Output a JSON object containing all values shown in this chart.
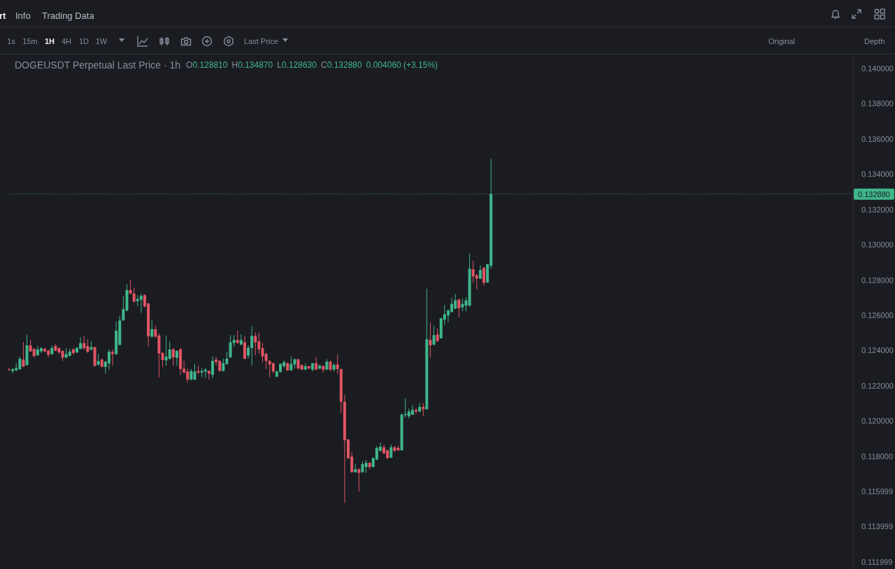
{
  "chart_data": {
    "type": "candlestick",
    "title": "DOGEUSDT Perpetual Last Price · 1h",
    "annotations": [
      "rt",
      "Info",
      "Trading Data",
      "1s",
      "15m",
      "1H",
      "4H",
      "1D",
      "1W",
      "Last Price",
      "Original",
      "Depth",
      "O0.128810",
      "H0.134870",
      "L0.128630",
      "C0.132880",
      "0.004060 (+3.15%)"
    ],
    "categories": [
      null,
      null,
      null,
      null,
      null,
      null,
      null,
      null,
      null,
      null,
      null,
      null,
      null,
      null,
      null,
      null,
      null,
      null,
      null,
      null,
      null,
      null,
      null,
      null,
      null,
      null,
      null,
      null,
      null,
      null,
      null,
      null,
      null,
      null,
      null,
      null,
      null,
      null,
      null,
      null,
      null,
      null,
      null,
      null,
      null,
      null,
      null,
      null,
      null,
      null,
      null,
      null,
      null,
      null,
      null,
      null,
      null,
      null,
      null,
      null,
      null,
      null,
      null,
      null,
      null,
      null,
      null,
      null,
      null,
      null,
      null,
      null,
      null,
      null,
      null,
      null,
      null,
      null,
      null,
      null,
      null,
      null,
      null,
      null,
      null,
      null,
      null,
      null,
      null,
      null,
      null,
      null,
      null,
      null,
      null,
      null,
      null,
      null,
      null,
      null,
      null,
      null,
      null,
      null,
      null,
      null,
      null,
      null,
      null,
      null,
      null,
      null,
      null,
      null,
      null,
      null,
      null,
      null,
      null,
      null,
      null,
      null,
      null,
      null,
      null,
      null,
      null,
      null,
      null,
      null,
      null,
      null,
      null,
      null,
      null,
      null,
      null,
      null,
      null,
      null,
      null,
      null,
      null,
      null,
      null,
      null,
      null,
      null,
      null,
      null,
      null,
      null,
      null,
      null,
      null,
      null,
      null,
      null,
      null,
      null,
      null,
      null,
      null,
      null,
      null,
      null,
      null,
      null,
      null,
      null,
      null,
      null,
      null,
      null,
      null,
      null,
      null,
      null,
      null,
      null,
      null,
      null,
      null,
      null,
      null,
      null,
      null,
      null,
      null,
      null,
      null,
      null,
      null,
      null,
      null,
      null,
      null,
      null,
      null,
      null,
      null,
      null,
      null,
      null,
      null,
      null,
      null,
      null,
      null,
      null,
      null,
      null,
      null,
      null,
      null,
      null,
      null,
      null,
      null,
      null,
      null,
      null,
      null,
      null,
      null,
      null,
      null,
      null,
      null,
      null,
      null,
      null,
      null,
      null,
      null,
      null,
      null
    ],
    "ohlc": [
      [
        0.12294,
        0.123,
        0.12284,
        0.1229
      ],
      [
        0.12283,
        0.123,
        0.1227,
        0.12294
      ],
      [
        0.12287,
        0.12327,
        0.12284,
        0.123
      ],
      [
        0.12294,
        0.12366,
        0.12291,
        0.12353
      ],
      [
        0.12349,
        0.12448,
        0.12307,
        0.12309
      ],
      [
        0.12317,
        0.12489,
        0.12314,
        0.12429
      ],
      [
        0.12429,
        0.12459,
        0.12393,
        0.12395
      ],
      [
        0.12409,
        0.12413,
        0.1236,
        0.12369
      ],
      [
        0.12373,
        0.12426,
        0.1237,
        0.12406
      ],
      [
        0.12395,
        0.12419,
        0.12386,
        0.12413
      ],
      [
        0.1241,
        0.12415,
        0.12389,
        0.12395
      ],
      [
        0.12399,
        0.12406,
        0.12362,
        0.12376
      ],
      [
        0.1238,
        0.12429,
        0.12376,
        0.12415
      ],
      [
        0.12426,
        0.12436,
        0.12397,
        0.12399
      ],
      [
        0.12413,
        0.12419,
        0.1238,
        0.12389
      ],
      [
        0.12397,
        0.12402,
        0.1234,
        0.1236
      ],
      [
        0.1236,
        0.12415,
        0.12357,
        0.1238
      ],
      [
        0.1237,
        0.1241,
        0.12366,
        0.12393
      ],
      [
        0.12406,
        0.12415,
        0.12376,
        0.12386
      ],
      [
        0.12389,
        0.12419,
        0.12386,
        0.12415
      ],
      [
        0.1241,
        0.12476,
        0.12407,
        0.12442
      ],
      [
        0.12442,
        0.12483,
        0.12406,
        0.12413
      ],
      [
        0.12426,
        0.12462,
        0.12386,
        0.12393
      ],
      [
        0.12406,
        0.12452,
        0.12399,
        0.12419
      ],
      [
        0.12419,
        0.12423,
        0.12307,
        0.12313
      ],
      [
        0.1232,
        0.1238,
        0.12313,
        0.1234
      ],
      [
        0.12349,
        0.12353,
        0.12304,
        0.12307
      ],
      [
        0.12307,
        0.1234,
        0.1227,
        0.12337
      ],
      [
        0.12327,
        0.12406,
        0.12291,
        0.12393
      ],
      [
        0.12393,
        0.12406,
        0.12313,
        0.1238
      ],
      [
        0.1238,
        0.12565,
        0.12373,
        0.12512
      ],
      [
        0.12432,
        0.12598,
        0.12429,
        0.12571
      ],
      [
        0.12571,
        0.1271,
        0.12569,
        0.12635
      ],
      [
        0.12627,
        0.12776,
        0.12624,
        0.12743
      ],
      [
        0.12743,
        0.12803,
        0.1272,
        0.12723
      ],
      [
        0.12723,
        0.12757,
        0.12675,
        0.12677
      ],
      [
        0.1268,
        0.12714,
        0.12651,
        0.12693
      ],
      [
        0.12688,
        0.12724,
        0.12614,
        0.1271
      ],
      [
        0.12714,
        0.1272,
        0.12644,
        0.12651
      ],
      [
        0.12667,
        0.12671,
        0.12423,
        0.12481
      ],
      [
        0.12479,
        0.12574,
        0.12472,
        0.12521
      ],
      [
        0.12521,
        0.12542,
        0.12472,
        0.12479
      ],
      [
        0.12485,
        0.12499,
        0.12247,
        0.12383
      ],
      [
        0.12386,
        0.12393,
        0.12307,
        0.12346
      ],
      [
        0.12344,
        0.12485,
        0.12313,
        0.12366
      ],
      [
        0.12353,
        0.12452,
        0.12349,
        0.12406
      ],
      [
        0.12407,
        0.12414,
        0.12314,
        0.12361
      ],
      [
        0.12358,
        0.12401,
        0.12314,
        0.12398
      ],
      [
        0.12407,
        0.12414,
        0.12262,
        0.12295
      ],
      [
        0.12297,
        0.12341,
        0.12268,
        0.12275
      ],
      [
        0.12281,
        0.12297,
        0.12218,
        0.12235
      ],
      [
        0.12235,
        0.12295,
        0.12231,
        0.12284
      ],
      [
        0.12235,
        0.12324,
        0.12231,
        0.12281
      ],
      [
        0.12284,
        0.12314,
        0.12266,
        0.12275
      ],
      [
        0.12275,
        0.12301,
        0.12248,
        0.12284
      ],
      [
        0.12281,
        0.12301,
        0.12244,
        0.12292
      ],
      [
        0.12284,
        0.12288,
        0.12235,
        0.12268
      ],
      [
        0.12262,
        0.12367,
        0.12242,
        0.12341
      ],
      [
        0.12348,
        0.12364,
        0.12314,
        0.12334
      ],
      [
        0.12341,
        0.12345,
        0.12281,
        0.12284
      ],
      [
        0.12284,
        0.12354,
        0.12281,
        0.12328
      ],
      [
        0.12324,
        0.12394,
        0.12318,
        0.12354
      ],
      [
        0.12361,
        0.12487,
        0.12358,
        0.12447
      ],
      [
        0.12443,
        0.12487,
        0.1242,
        0.1246
      ],
      [
        0.1246,
        0.12513,
        0.1244,
        0.12443
      ],
      [
        0.12434,
        0.12493,
        0.1243,
        0.1246
      ],
      [
        0.12447,
        0.12483,
        0.1235,
        0.12354
      ],
      [
        0.12371,
        0.1243,
        0.12354,
        0.12416
      ],
      [
        0.12414,
        0.12539,
        0.12314,
        0.12483
      ],
      [
        0.12483,
        0.12504,
        0.12374,
        0.12447
      ],
      [
        0.12453,
        0.125,
        0.12381,
        0.12407
      ],
      [
        0.12414,
        0.12443,
        0.12334,
        0.12367
      ],
      [
        0.12381,
        0.12387,
        0.12295,
        0.12341
      ],
      [
        0.12341,
        0.12345,
        0.12248,
        0.12321
      ],
      [
        0.12328,
        0.12331,
        0.12271,
        0.12281
      ],
      [
        0.12252,
        0.12288,
        0.12248,
        0.12281
      ],
      [
        0.12279,
        0.12328,
        0.12275,
        0.12324
      ],
      [
        0.12311,
        0.12345,
        0.12301,
        0.12334
      ],
      [
        0.12328,
        0.12334,
        0.12284,
        0.12288
      ],
      [
        0.12288,
        0.12367,
        0.12284,
        0.12324
      ],
      [
        0.12321,
        0.12354,
        0.12298,
        0.1235
      ],
      [
        0.1235,
        0.12354,
        0.12295,
        0.12298
      ],
      [
        0.12318,
        0.12321,
        0.12288,
        0.12292
      ],
      [
        0.12292,
        0.12328,
        0.12288,
        0.12311
      ],
      [
        0.12311,
        0.12314,
        0.12295,
        0.12298
      ],
      [
        0.12292,
        0.12331,
        0.12281,
        0.12328
      ],
      [
        0.12328,
        0.12364,
        0.12288,
        0.12292
      ],
      [
        0.12298,
        0.12321,
        0.12292,
        0.12314
      ],
      [
        0.12311,
        0.12318,
        0.12275,
        0.12292
      ],
      [
        0.12292,
        0.1235,
        0.12288,
        0.12337
      ],
      [
        0.12337,
        0.12345,
        0.12281,
        0.12292
      ],
      [
        0.12292,
        0.12328,
        0.12281,
        0.12318
      ],
      [
        0.12321,
        0.12377,
        0.12268,
        0.12295
      ],
      [
        0.12294,
        0.12297,
        0.12046,
        0.12109
      ],
      [
        0.12109,
        0.12149,
        0.11535,
        0.11891
      ],
      [
        0.11895,
        0.11898,
        0.11785,
        0.11789
      ],
      [
        0.11798,
        0.11825,
        0.11706,
        0.1171
      ],
      [
        0.1171,
        0.11755,
        0.11706,
        0.11726
      ],
      [
        0.11726,
        0.11732,
        0.116,
        0.11706
      ],
      [
        0.1171,
        0.11772,
        0.11706,
        0.11755
      ],
      [
        0.11739,
        0.11778,
        0.11706,
        0.11763
      ],
      [
        0.11763,
        0.11765,
        0.11726,
        0.11739
      ],
      [
        0.11739,
        0.11794,
        0.11736,
        0.11789
      ],
      [
        0.11781,
        0.11858,
        0.11778,
        0.11847
      ],
      [
        0.11831,
        0.11878,
        0.11825,
        0.11854
      ],
      [
        0.11851,
        0.11865,
        0.11812,
        0.11816
      ],
      [
        0.11834,
        0.11838,
        0.11785,
        0.11789
      ],
      [
        0.11792,
        0.11868,
        0.11789,
        0.11851
      ],
      [
        0.11851,
        0.11858,
        0.11825,
        0.11831
      ],
      [
        0.11847,
        0.11861,
        0.11829,
        0.11834
      ],
      [
        0.11834,
        0.12043,
        0.11831,
        0.12036
      ],
      [
        0.12033,
        0.12129,
        0.12019,
        0.1204
      ],
      [
        0.12027,
        0.1207,
        0.12014,
        0.12054
      ],
      [
        0.12036,
        0.12089,
        0.12033,
        0.12063
      ],
      [
        0.12063,
        0.12072,
        0.1204,
        0.12054
      ],
      [
        0.12054,
        0.12103,
        0.1205,
        0.1208
      ],
      [
        0.1208,
        0.12103,
        0.12027,
        0.12067
      ],
      [
        0.12067,
        0.12751,
        0.12063,
        0.12464
      ],
      [
        0.1246,
        0.12559,
        0.12358,
        0.1243
      ],
      [
        0.12434,
        0.1254,
        0.12427,
        0.12487
      ],
      [
        0.12491,
        0.12526,
        0.12447,
        0.12454
      ],
      [
        0.1247,
        0.12586,
        0.12467,
        0.12583
      ],
      [
        0.12575,
        0.12659,
        0.12544,
        0.12606
      ],
      [
        0.12599,
        0.12632,
        0.12562,
        0.12628
      ],
      [
        0.12619,
        0.12698,
        0.12615,
        0.12665
      ],
      [
        0.12639,
        0.12721,
        0.12632,
        0.12685
      ],
      [
        0.12689,
        0.12694,
        0.12589,
        0.12641
      ],
      [
        0.12645,
        0.12694,
        0.12623,
        0.12665
      ],
      [
        0.12655,
        0.12702,
        0.12623,
        0.12685
      ],
      [
        0.12655,
        0.1295,
        0.12649,
        0.12864
      ],
      [
        0.12861,
        0.1291,
        0.12782,
        0.12821
      ],
      [
        0.12827,
        0.12835,
        0.12747,
        0.12808
      ],
      [
        0.12808,
        0.12884,
        0.12804,
        0.12857
      ],
      [
        0.1287,
        0.12874,
        0.12768,
        0.12784
      ],
      [
        0.12787,
        0.12893,
        0.12784,
        0.1289
      ],
      [
        0.12881,
        0.13487,
        0.12863,
        0.13288
      ],
      null,
      null,
      null,
      null,
      null,
      null,
      null,
      null,
      null,
      null,
      null,
      null,
      null,
      null,
      null,
      null,
      null,
      null,
      null,
      null,
      null,
      null,
      null,
      null,
      null,
      null,
      null,
      null,
      null,
      null,
      null,
      null,
      null,
      null,
      null,
      null,
      null,
      null,
      null,
      null,
      null,
      null,
      null,
      null,
      null,
      null,
      null,
      null,
      null,
      null,
      null,
      null,
      null,
      null,
      null,
      null,
      null,
      null,
      null,
      null,
      null,
      null,
      null,
      null,
      null,
      null,
      null,
      null,
      null,
      null,
      null,
      null,
      null,
      null,
      null,
      null,
      null,
      null,
      null,
      null,
      null,
      null,
      null,
      null,
      null,
      null,
      null,
      null,
      null,
      null,
      null,
      null,
      null,
      null,
      null,
      null,
      null,
      null,
      null,
      null,
      null
    ],
    "colors": [
      "#e05564",
      "#3fb68b",
      "#3fb68b",
      "#3fb68b",
      "#e05564",
      "#3fb68b",
      "#e05564",
      "#e05564",
      "#3fb68b",
      "#3fb68b",
      "#e05564",
      "#e05564",
      "#3fb68b",
      "#e05564",
      "#e05564",
      "#e05564",
      "#3fb68b",
      "#3fb68b",
      "#e05564",
      "#3fb68b",
      "#3fb68b",
      "#e05564",
      "#e05564",
      "#3fb68b",
      "#e05564",
      "#3fb68b",
      "#e05564",
      "#3fb68b",
      "#3fb68b",
      "#e05564",
      "#3fb68b",
      "#3fb68b",
      "#3fb68b",
      "#3fb68b",
      "#e05564",
      "#e05564",
      "#3fb68b",
      "#3fb68b",
      "#e05564",
      "#e05564",
      "#3fb68b",
      "#e05564",
      "#e05564",
      "#e05564",
      "#3fb68b",
      "#3fb68b",
      "#e05564",
      "#3fb68b",
      "#e05564",
      "#e05564",
      "#e05564",
      "#3fb68b",
      "#3fb68b",
      "#e05564",
      "#3fb68b",
      "#3fb68b",
      "#e05564",
      "#3fb68b",
      "#e05564",
      "#e05564",
      "#3fb68b",
      "#3fb68b",
      "#3fb68b",
      "#3fb68b",
      "#e05564",
      "#3fb68b",
      "#e05564",
      "#3fb68b",
      "#3fb68b",
      "#e05564",
      "#e05564",
      "#e05564",
      "#e05564",
      "#e05564",
      "#e05564",
      "#3fb68b",
      "#3fb68b",
      "#3fb68b",
      "#e05564",
      "#3fb68b",
      "#3fb68b",
      "#e05564",
      "#e05564",
      "#3fb68b",
      "#e05564",
      "#3fb68b",
      "#e05564",
      "#3fb68b",
      "#e05564",
      "#3fb68b",
      "#e05564",
      "#3fb68b",
      "#e05564",
      "#e05564",
      "#e05564",
      "#e05564",
      "#e05564",
      "#3fb68b",
      "#e05564",
      "#3fb68b",
      "#3fb68b",
      "#e05564",
      "#3fb68b",
      "#3fb68b",
      "#3fb68b",
      "#e05564",
      "#e05564",
      "#3fb68b",
      "#e05564",
      "#e05564",
      "#3fb68b",
      "#3fb68b",
      "#3fb68b",
      "#3fb68b",
      "#e05564",
      "#3fb68b",
      "#e05564",
      "#3fb68b",
      "#e05564",
      "#3fb68b",
      "#e05564",
      "#3fb68b",
      "#3fb68b",
      "#3fb68b",
      "#3fb68b",
      "#3fb68b",
      "#e05564",
      "#3fb68b",
      "#3fb68b",
      "#3fb68b",
      "#e05564",
      "#e05564",
      "#3fb68b",
      "#e05564",
      "#3fb68b",
      "#3fb68b",
      null,
      null,
      null,
      null,
      null,
      null,
      null,
      null,
      null,
      null,
      null,
      null,
      null,
      null,
      null,
      null,
      null,
      null,
      null,
      null,
      null,
      null,
      null,
      null,
      null,
      null,
      null,
      null,
      null,
      null,
      null,
      null,
      null,
      null,
      null,
      null,
      null,
      null,
      null,
      null,
      null,
      null,
      null,
      null,
      null,
      null,
      null,
      null,
      null,
      null,
      null,
      null,
      null,
      null,
      null,
      null,
      null,
      null,
      null,
      null,
      null,
      null,
      null,
      null,
      null,
      null,
      null,
      null,
      null,
      null,
      null,
      null,
      null,
      null,
      null,
      null,
      null,
      null,
      null,
      null,
      null,
      null,
      null,
      null,
      null,
      null,
      null,
      null,
      null,
      null,
      null,
      null,
      null,
      null,
      null,
      null,
      null,
      null,
      null,
      null,
      null
    ],
    "ylim": [
      0.1116,
      0.1408
    ],
    "yticks": [
      {
        "value": 0.14,
        "label": "0.140000"
      },
      {
        "value": 0.138,
        "label": "0.138000"
      },
      {
        "value": 0.136,
        "label": "0.136000"
      },
      {
        "value": 0.134,
        "label": "0.134000"
      },
      {
        "value": 0.132,
        "label": "0.132000"
      },
      {
        "value": 0.13,
        "label": "0.130000"
      },
      {
        "value": 0.128,
        "label": "0.128000"
      },
      {
        "value": 0.126,
        "label": "0.126000"
      },
      {
        "value": 0.124,
        "label": "0.124000"
      },
      {
        "value": 0.122,
        "label": "0.122000"
      },
      {
        "value": 0.12,
        "label": "0.120000"
      },
      {
        "value": 0.118,
        "label": "0.118000"
      },
      {
        "value": 0.115999,
        "label": "0.115999"
      },
      {
        "value": 0.113999,
        "label": "0.113999"
      },
      {
        "value": 0.111999,
        "label": "0.111999"
      }
    ],
    "ref_lines": [
      {
        "axis": "y",
        "value": 0.13288,
        "label": "0.132880",
        "color": "#3fb68b",
        "line_style": "dotted"
      }
    ],
    "tick_labels": "y"
  }
}
